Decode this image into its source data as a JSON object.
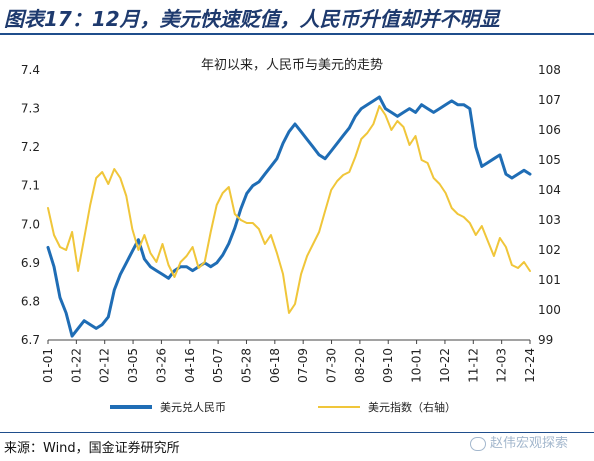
{
  "figure_title": "图表17：12月，美元快速贬值，人民币升值却并不明显",
  "source": "来源：Wind，国金证券研究所",
  "watermark": "赵伟宏观探索",
  "chart_data": {
    "type": "line",
    "title": "年初以来，人民币与美元的走势",
    "x_ticks": [
      "01-01",
      "01-22",
      "02-12",
      "03-05",
      "03-26",
      "04-16",
      "05-07",
      "05-28",
      "06-18",
      "07-09",
      "07-30",
      "08-20",
      "09-10",
      "10-01",
      "10-22",
      "11-12",
      "12-03",
      "12-24"
    ],
    "y_left": {
      "min": 6.7,
      "max": 7.4,
      "ticks": [
        6.7,
        6.8,
        6.9,
        7.0,
        7.1,
        7.2,
        7.3,
        7.4
      ]
    },
    "y_right": {
      "min": 99,
      "max": 108,
      "ticks": [
        99,
        100,
        101,
        102,
        103,
        104,
        105,
        106,
        107,
        108
      ]
    },
    "series": [
      {
        "name": "美元兑人民币",
        "axis": "left",
        "color": "#1f6db5",
        "points": [
          [
            0,
            6.94
          ],
          [
            1,
            6.89
          ],
          [
            2,
            6.81
          ],
          [
            3,
            6.77
          ],
          [
            4,
            6.71
          ],
          [
            5,
            6.73
          ],
          [
            6,
            6.75
          ],
          [
            7,
            6.74
          ],
          [
            8,
            6.73
          ],
          [
            9,
            6.74
          ],
          [
            10,
            6.76
          ],
          [
            11,
            6.83
          ],
          [
            12,
            6.87
          ],
          [
            13,
            6.9
          ],
          [
            14,
            6.93
          ],
          [
            15,
            6.96
          ],
          [
            16,
            6.91
          ],
          [
            17,
            6.89
          ],
          [
            18,
            6.88
          ],
          [
            19,
            6.87
          ],
          [
            20,
            6.86
          ],
          [
            21,
            6.88
          ],
          [
            22,
            6.89
          ],
          [
            23,
            6.89
          ],
          [
            24,
            6.88
          ],
          [
            25,
            6.89
          ],
          [
            26,
            6.9
          ],
          [
            27,
            6.89
          ],
          [
            28,
            6.9
          ],
          [
            29,
            6.92
          ],
          [
            30,
            6.95
          ],
          [
            31,
            6.99
          ],
          [
            32,
            7.04
          ],
          [
            33,
            7.08
          ],
          [
            34,
            7.1
          ],
          [
            35,
            7.11
          ],
          [
            36,
            7.13
          ],
          [
            37,
            7.15
          ],
          [
            38,
            7.17
          ],
          [
            39,
            7.21
          ],
          [
            40,
            7.24
          ],
          [
            41,
            7.26
          ],
          [
            42,
            7.24
          ],
          [
            43,
            7.22
          ],
          [
            44,
            7.2
          ],
          [
            45,
            7.18
          ],
          [
            46,
            7.17
          ],
          [
            47,
            7.19
          ],
          [
            48,
            7.21
          ],
          [
            49,
            7.23
          ],
          [
            50,
            7.25
          ],
          [
            51,
            7.28
          ],
          [
            52,
            7.3
          ],
          [
            53,
            7.31
          ],
          [
            54,
            7.32
          ],
          [
            55,
            7.33
          ],
          [
            56,
            7.3
          ],
          [
            57,
            7.29
          ],
          [
            58,
            7.28
          ],
          [
            59,
            7.29
          ],
          [
            60,
            7.3
          ],
          [
            61,
            7.29
          ],
          [
            62,
            7.31
          ],
          [
            63,
            7.3
          ],
          [
            64,
            7.29
          ],
          [
            65,
            7.3
          ],
          [
            66,
            7.31
          ],
          [
            67,
            7.32
          ],
          [
            68,
            7.31
          ],
          [
            69,
            7.31
          ],
          [
            70,
            7.3
          ],
          [
            71,
            7.2
          ],
          [
            72,
            7.15
          ],
          [
            73,
            7.16
          ],
          [
            74,
            7.17
          ],
          [
            75,
            7.18
          ],
          [
            76,
            7.13
          ],
          [
            77,
            7.12
          ],
          [
            78,
            7.13
          ],
          [
            79,
            7.14
          ],
          [
            80,
            7.13
          ]
        ]
      },
      {
        "name": "美元指数（右轴）",
        "axis": "right",
        "color": "#f0c63a",
        "points": [
          [
            0,
            103.4
          ],
          [
            1,
            102.5
          ],
          [
            2,
            102.1
          ],
          [
            3,
            102.0
          ],
          [
            4,
            102.6
          ],
          [
            5,
            101.3
          ],
          [
            6,
            102.4
          ],
          [
            7,
            103.5
          ],
          [
            8,
            104.4
          ],
          [
            9,
            104.6
          ],
          [
            10,
            104.2
          ],
          [
            11,
            104.7
          ],
          [
            12,
            104.4
          ],
          [
            13,
            103.8
          ],
          [
            14,
            102.7
          ],
          [
            15,
            102.0
          ],
          [
            16,
            102.5
          ],
          [
            17,
            101.9
          ],
          [
            18,
            101.6
          ],
          [
            19,
            102.2
          ],
          [
            20,
            101.5
          ],
          [
            21,
            101.1
          ],
          [
            22,
            101.6
          ],
          [
            23,
            101.8
          ],
          [
            24,
            102.1
          ],
          [
            25,
            101.4
          ],
          [
            26,
            101.6
          ],
          [
            27,
            102.6
          ],
          [
            28,
            103.5
          ],
          [
            29,
            103.9
          ],
          [
            30,
            104.1
          ],
          [
            31,
            103.2
          ],
          [
            32,
            103.0
          ],
          [
            33,
            102.9
          ],
          [
            34,
            102.9
          ],
          [
            35,
            102.7
          ],
          [
            36,
            102.2
          ],
          [
            37,
            102.5
          ],
          [
            38,
            101.9
          ],
          [
            39,
            101.2
          ],
          [
            40,
            99.9
          ],
          [
            41,
            100.2
          ],
          [
            42,
            101.2
          ],
          [
            43,
            101.8
          ],
          [
            44,
            102.2
          ],
          [
            45,
            102.6
          ],
          [
            46,
            103.3
          ],
          [
            47,
            104.0
          ],
          [
            48,
            104.3
          ],
          [
            49,
            104.5
          ],
          [
            50,
            104.6
          ],
          [
            51,
            105.1
          ],
          [
            52,
            105.7
          ],
          [
            53,
            105.9
          ],
          [
            54,
            106.2
          ],
          [
            55,
            106.8
          ],
          [
            56,
            106.5
          ],
          [
            57,
            106.0
          ],
          [
            58,
            106.3
          ],
          [
            59,
            106.1
          ],
          [
            60,
            105.5
          ],
          [
            61,
            105.8
          ],
          [
            62,
            105.0
          ],
          [
            63,
            104.9
          ],
          [
            64,
            104.4
          ],
          [
            65,
            104.2
          ],
          [
            66,
            103.9
          ],
          [
            67,
            103.4
          ],
          [
            68,
            103.2
          ],
          [
            69,
            103.1
          ],
          [
            70,
            102.9
          ],
          [
            71,
            102.5
          ],
          [
            72,
            102.8
          ],
          [
            73,
            102.3
          ],
          [
            74,
            101.8
          ],
          [
            75,
            102.4
          ],
          [
            76,
            102.1
          ],
          [
            77,
            101.5
          ],
          [
            78,
            101.4
          ],
          [
            79,
            101.6
          ],
          [
            80,
            101.3
          ]
        ]
      }
    ]
  }
}
